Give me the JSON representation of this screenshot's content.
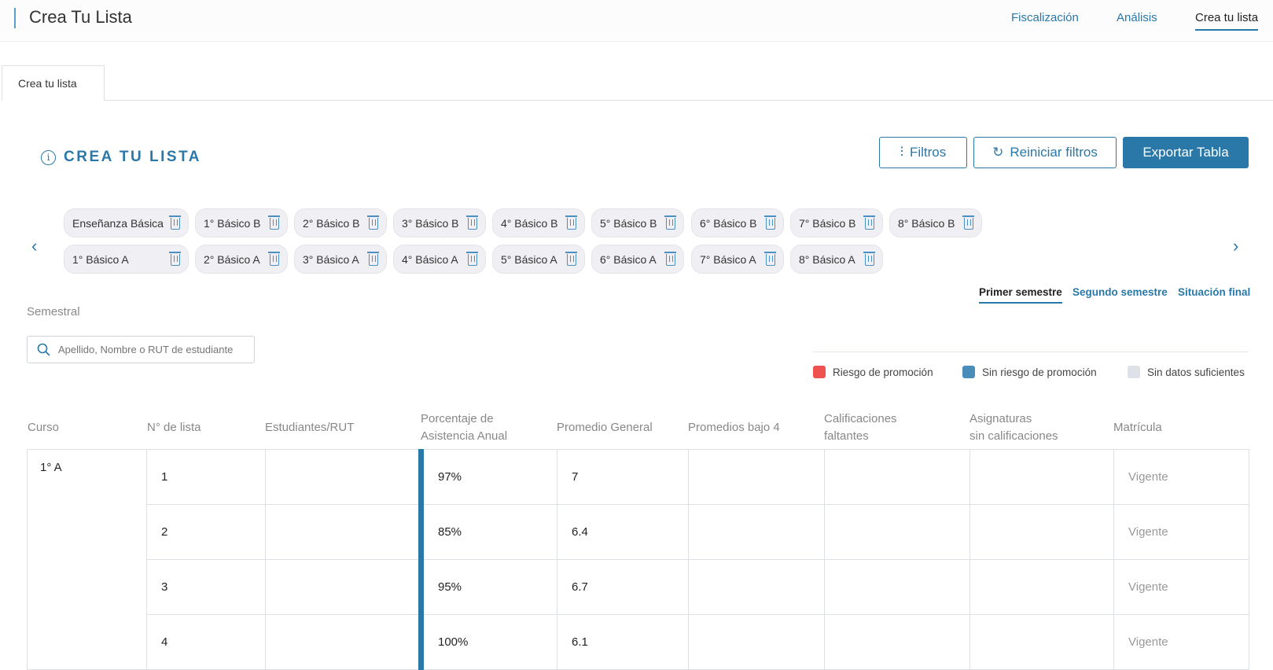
{
  "header": {
    "title": "Crea Tu Lista",
    "nav": [
      {
        "label": "Fiscalización"
      },
      {
        "label": "Análisis"
      },
      {
        "label": "Crea tu lista",
        "active": true
      }
    ]
  },
  "tab": {
    "label": "Crea tu lista"
  },
  "section": {
    "title": "CREA TU LISTA",
    "icon": "info-icon"
  },
  "buttons": {
    "filters": "Filtros",
    "reset": "Reiniciar filtros",
    "export": "Exportar Tabla"
  },
  "chips_row1": [
    "Enseñanza Básica",
    "1° Básico B",
    "2° Básico B",
    "3° Básico B",
    "4° Básico B",
    "5° Básico B",
    "6° Básico B",
    "7° Básico B",
    "8° Básico B"
  ],
  "chips_row2": [
    "1° Básico A",
    "2° Básico A",
    "3° Básico A",
    "4° Básico A",
    "5° Básico A",
    "6° Básico A",
    "7° Básico A",
    "8° Básico A"
  ],
  "semester_tabs": [
    {
      "label": "Primer semestre",
      "active": true
    },
    {
      "label": "Segundo semestre"
    },
    {
      "label": "Situación final"
    }
  ],
  "filter_label": "Semestral",
  "search": {
    "placeholder": "Apellido, Nombre o RUT de estudiante",
    "value": ""
  },
  "legend": [
    {
      "label": "Riesgo de promoción",
      "color": "#ef5350"
    },
    {
      "label": "Sin riesgo de promoción",
      "color": "#4a8db8"
    },
    {
      "label": "Sin datos suficientes",
      "color": "#dfe1e8"
    }
  ],
  "table": {
    "headers": [
      "Curso",
      "N° de lista",
      "Estudiantes/RUT",
      "Porcentaje de\nAsistencia Anual",
      "Promedio General",
      "Promedios bajo 4",
      "Calificaciones\nfaltantes",
      "Asignaturas\nsin calificaciones",
      "Matrícula"
    ],
    "curso": "1° A",
    "rows": [
      {
        "n": "1",
        "pct": "97%",
        "prom": "7",
        "mat": "Vigente"
      },
      {
        "n": "2",
        "pct": "85%",
        "prom": "6.4",
        "mat": "Vigente"
      },
      {
        "n": "3",
        "pct": "95%",
        "prom": "6.7",
        "mat": "Vigente"
      },
      {
        "n": "4",
        "pct": "100%",
        "prom": "6.1",
        "mat": "Vigente"
      }
    ]
  },
  "colors": {
    "accent": "#2a78a8"
  }
}
